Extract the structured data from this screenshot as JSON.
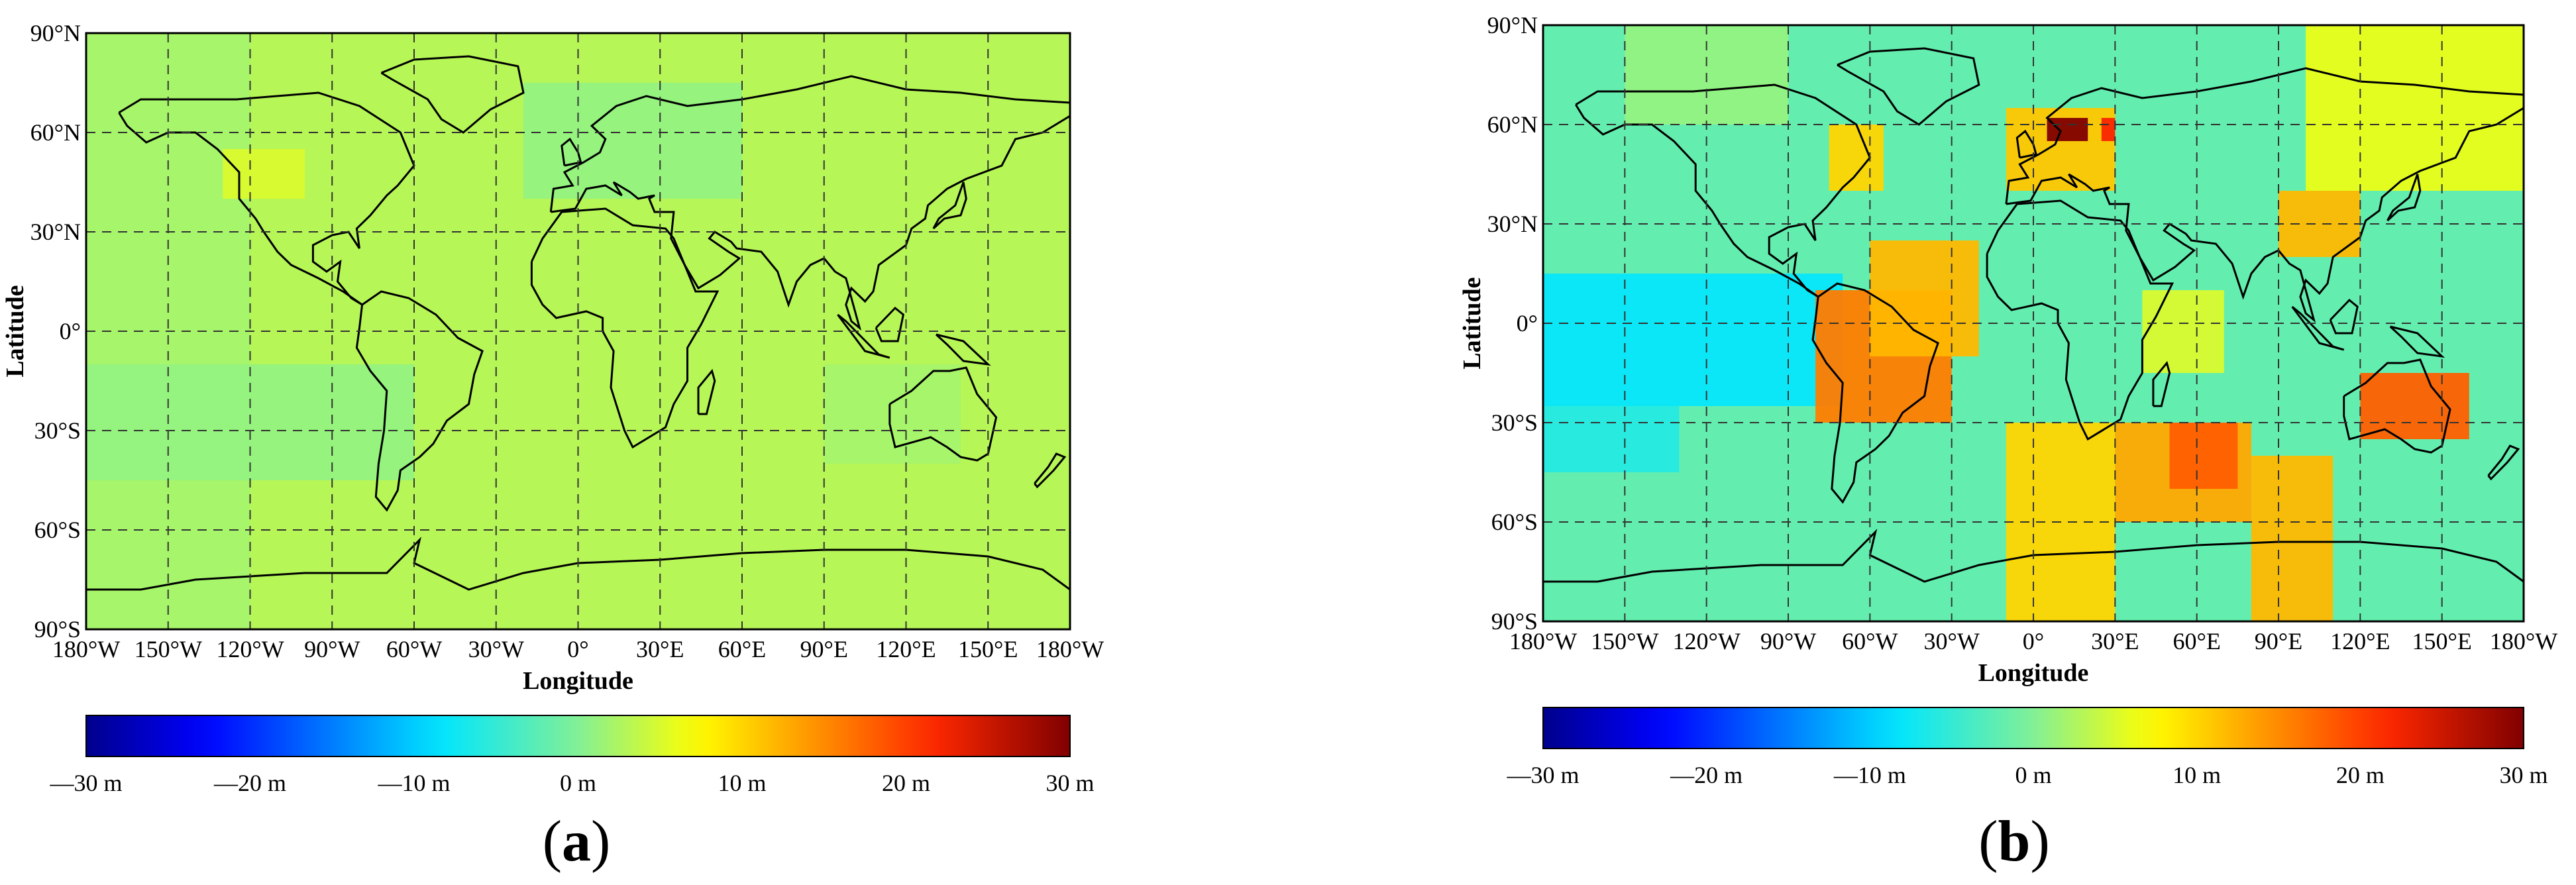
{
  "panels": [
    {
      "id": "a",
      "caption_open": "(",
      "caption_letter": "a",
      "caption_close": ")",
      "xlabel": "Longitude",
      "ylabel": "Latitude",
      "lon_ticks": [
        "180°W",
        "150°W",
        "120°W",
        "90°W",
        "60°W",
        "30°W",
        "0°",
        "30°E",
        "60°E",
        "90°E",
        "120°E",
        "150°E",
        "180°W"
      ],
      "lat_ticks": [
        "90°N",
        "60°N",
        "30°N",
        "0°",
        "30°S",
        "60°S",
        "90°S"
      ],
      "colorbar_ticks": [
        "—30 m",
        "—20 m",
        "—10 m",
        "0 m",
        "10 m",
        "20 m",
        "30 m"
      ],
      "background_value_m": 3,
      "regions": [
        {
          "lon": [
            -180,
            -120
          ],
          "lat": [
            -90,
            90
          ],
          "value_m": 2
        },
        {
          "lon": [
            -130,
            -100
          ],
          "lat": [
            40,
            55
          ],
          "value_m": 5
        },
        {
          "lon": [
            -20,
            60
          ],
          "lat": [
            40,
            75
          ],
          "value_m": 1
        },
        {
          "lon": [
            -180,
            -60
          ],
          "lat": [
            -45,
            -10
          ],
          "value_m": 1
        },
        {
          "lon": [
            90,
            140
          ],
          "lat": [
            -40,
            -10
          ],
          "value_m": 2
        }
      ]
    },
    {
      "id": "b",
      "caption_open": "(",
      "caption_letter": "b",
      "caption_close": ")",
      "xlabel": "Longitude",
      "ylabel": "Latitude",
      "lon_ticks": [
        "180°W",
        "150°W",
        "120°W",
        "90°W",
        "60°W",
        "30°W",
        "0°",
        "30°E",
        "60°E",
        "90°E",
        "120°E",
        "150°E",
        "180°W"
      ],
      "lat_ticks": [
        "90°N",
        "60°N",
        "30°N",
        "0°",
        "30°S",
        "60°S",
        "90°S"
      ],
      "colorbar_ticks": [
        "—30 m",
        "—20 m",
        "—10 m",
        "0 m",
        "10 m",
        "20 m",
        "30 m"
      ],
      "background_value_m": -2,
      "regions": [
        {
          "lon": [
            -180,
            -70
          ],
          "lat": [
            -25,
            15
          ],
          "value_m": -8
        },
        {
          "lon": [
            -180,
            -130
          ],
          "lat": [
            -45,
            -25
          ],
          "value_m": -6
        },
        {
          "lon": [
            -80,
            -30
          ],
          "lat": [
            -30,
            10
          ],
          "value_m": 16
        },
        {
          "lon": [
            -60,
            -20
          ],
          "lat": [
            -10,
            25
          ],
          "value_m": 12
        },
        {
          "lon": [
            -10,
            30
          ],
          "lat": [
            -90,
            -30
          ],
          "value_m": 10
        },
        {
          "lon": [
            30,
            80
          ],
          "lat": [
            -60,
            -30
          ],
          "value_m": 13
        },
        {
          "lon": [
            50,
            75
          ],
          "lat": [
            -50,
            -30
          ],
          "value_m": 18
        },
        {
          "lon": [
            80,
            110
          ],
          "lat": [
            -90,
            -40
          ],
          "value_m": 12
        },
        {
          "lon": [
            -10,
            30
          ],
          "lat": [
            40,
            65
          ],
          "value_m": 11
        },
        {
          "lon": [
            5,
            20
          ],
          "lat": [
            55,
            62
          ],
          "value_m": 30
        },
        {
          "lon": [
            25,
            30
          ],
          "lat": [
            55,
            62
          ],
          "value_m": 22
        },
        {
          "lon": [
            -75,
            -55
          ],
          "lat": [
            40,
            60
          ],
          "value_m": 10
        },
        {
          "lon": [
            90,
            120
          ],
          "lat": [
            20,
            40
          ],
          "value_m": 12
        },
        {
          "lon": [
            120,
            160
          ],
          "lat": [
            -35,
            -15
          ],
          "value_m": 18
        },
        {
          "lon": [
            100,
            180
          ],
          "lat": [
            40,
            90
          ],
          "value_m": 6
        },
        {
          "lon": [
            -150,
            -90
          ],
          "lat": [
            60,
            90
          ],
          "value_m": 1
        },
        {
          "lon": [
            40,
            70
          ],
          "lat": [
            -15,
            10
          ],
          "value_m": 5
        }
      ]
    }
  ]
}
